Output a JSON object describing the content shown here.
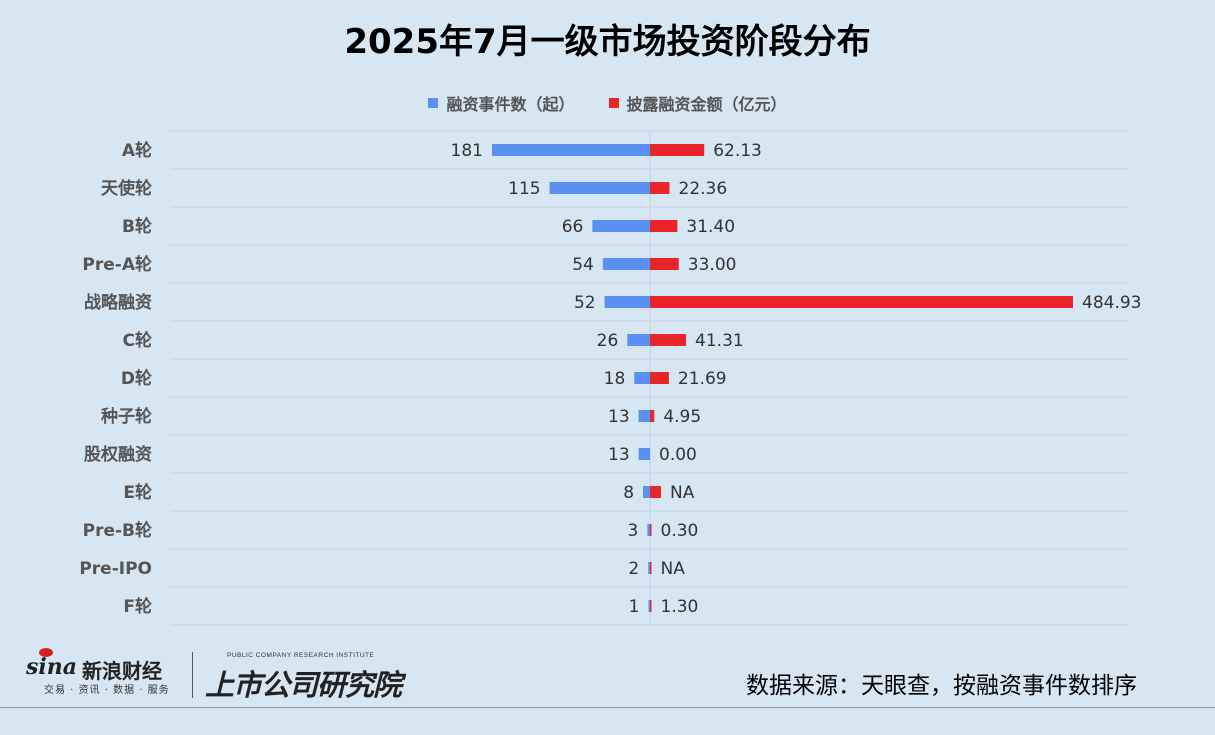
{
  "title": "2025年7月一级市场投资阶段分布",
  "legend": {
    "series1": "融资事件数（起）",
    "series2": "披露融资金额（亿元）"
  },
  "colors": {
    "series1": "#5b90f0",
    "series2": "#e8262a",
    "background": "#d6e6f3"
  },
  "source": "数据来源：天眼查，按融资事件数排序",
  "logos": {
    "sina_word": "sina",
    "sina_cn": "新浪财经",
    "sina_sub": "交易 · 资讯 · 数据 · 服务",
    "pub_en": "PUBLIC COMPANY RESEARCH INSTITUTE",
    "pub_cn": "上市公司研究院"
  },
  "chart_data": {
    "type": "bar",
    "orientation": "horizontal-butterfly",
    "categories": [
      "A轮",
      "天使轮",
      "B轮",
      "Pre-A轮",
      "战略融资",
      "C轮",
      "D轮",
      "种子轮",
      "股权融资",
      "E轮",
      "Pre-B轮",
      "Pre-IPO",
      "F轮"
    ],
    "series": [
      {
        "name": "融资事件数（起）",
        "values": [
          181,
          115,
          66,
          54,
          52,
          26,
          18,
          13,
          13,
          8,
          3,
          2,
          1
        ],
        "labels": [
          "181",
          "115",
          "66",
          "54",
          "52",
          "26",
          "18",
          "13",
          "13",
          "8",
          "3",
          "2",
          "1"
        ]
      },
      {
        "name": "披露融资金额（亿元）",
        "values": [
          62.13,
          22.36,
          31.4,
          33.0,
          484.93,
          41.31,
          21.69,
          4.95,
          0.0,
          null,
          0.3,
          null,
          1.3
        ],
        "labels": [
          "62.13",
          "22.36",
          "31.40",
          "33.00",
          "484.93",
          "41.31",
          "21.69",
          "4.95",
          "0.00",
          "NA",
          "0.30",
          "NA",
          "1.30"
        ]
      }
    ],
    "legend_position": "top-center",
    "grid": true
  }
}
